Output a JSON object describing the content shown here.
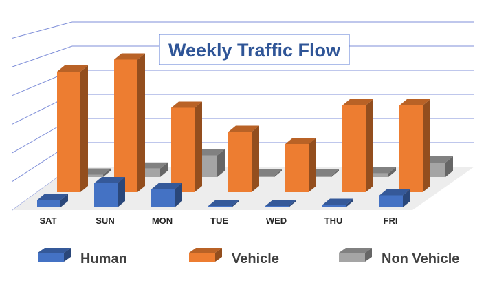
{
  "chart_data": {
    "type": "bar",
    "variant": "3d-column",
    "title": "Weekly Traffic Flow",
    "categories": [
      "SAT",
      "SUN",
      "MON",
      "TUE",
      "WED",
      "THU",
      "FRI"
    ],
    "series": [
      {
        "name": "Human",
        "color": "#4472C4",
        "values": [
          0.3,
          1.0,
          0.75,
          0.05,
          0.02,
          0.1,
          0.5
        ]
      },
      {
        "name": "Vehicle",
        "color": "#ED7D31",
        "values": [
          5.0,
          5.5,
          3.5,
          2.5,
          2.0,
          3.6,
          3.6
        ]
      },
      {
        "name": "Non Vehicle",
        "color": "#A5A5A5",
        "values": [
          0.1,
          0.35,
          0.9,
          0.05,
          0.05,
          0.15,
          0.6
        ]
      }
    ],
    "ylim": [
      0,
      6
    ],
    "grid": true,
    "y_tick_labels_shown": false,
    "legend_position": "bottom"
  }
}
